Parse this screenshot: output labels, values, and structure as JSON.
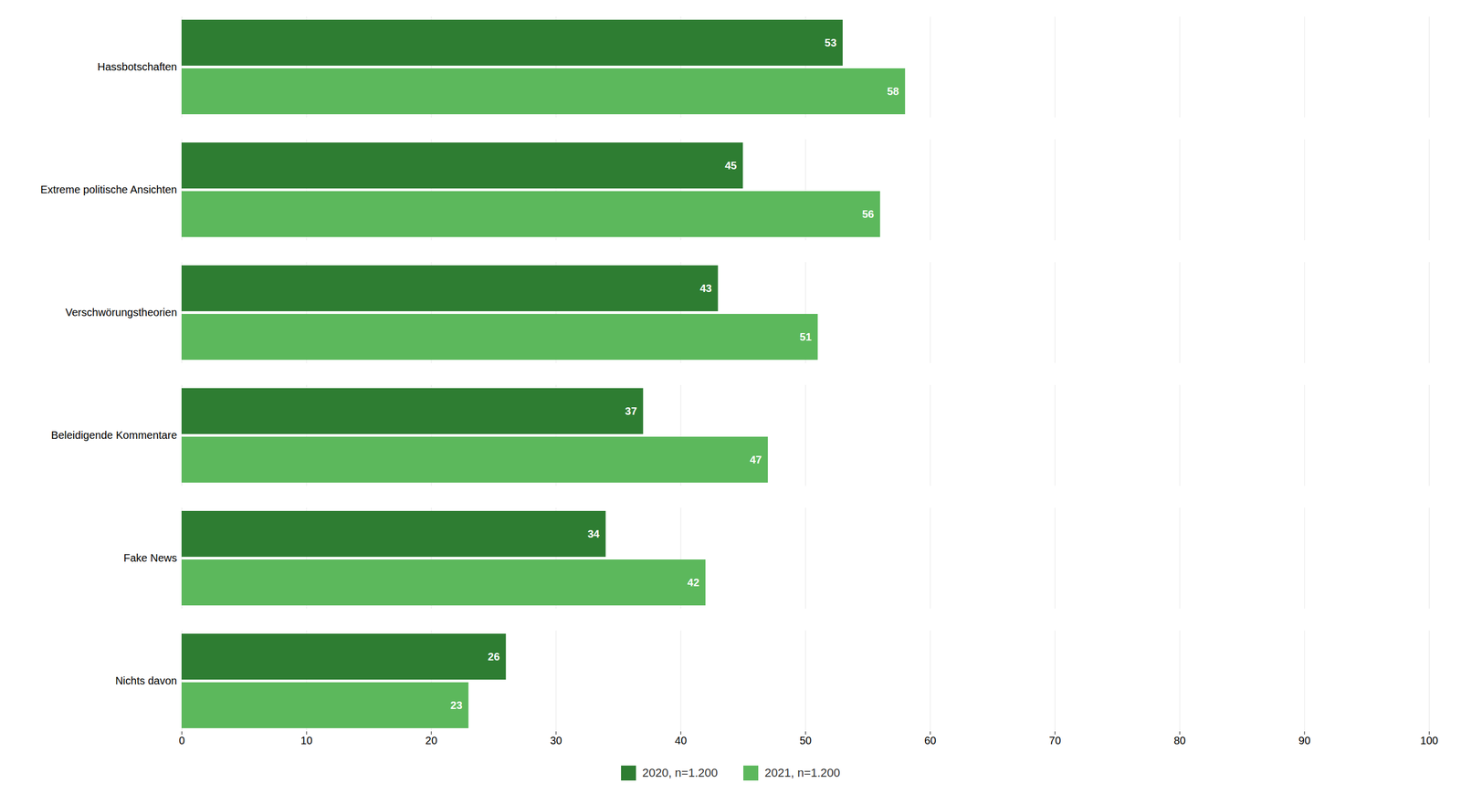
{
  "chart_data": {
    "type": "bar",
    "orientation": "horizontal",
    "categories": [
      "Hassbotschaften",
      "Extreme politische Ansichten",
      "Verschwörungstheorien",
      "Beleidigende Kommentare",
      "Fake News",
      "Nichts davon"
    ],
    "series": [
      {
        "name": "2020, n=1.200",
        "color": "#2e7d32",
        "values": [
          53,
          45,
          43,
          37,
          34,
          26
        ]
      },
      {
        "name": "2021, n=1.200",
        "color": "#5cb85c",
        "values": [
          58,
          56,
          51,
          47,
          42,
          23
        ]
      }
    ],
    "xlim": [
      0,
      100
    ],
    "xticks": [
      0,
      10,
      20,
      30,
      40,
      50,
      60,
      70,
      80,
      90,
      100
    ],
    "grid": true,
    "legend": "bottom",
    "data_labels": true
  }
}
